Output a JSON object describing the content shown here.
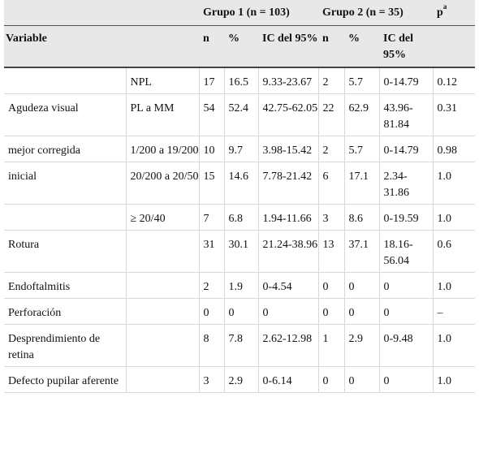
{
  "header": {
    "group1": "Grupo 1 (n = 103)",
    "group2": "Grupo 2 (n = 35)",
    "p_label": "p",
    "p_sup": "a",
    "variable": "Variable",
    "n": "n",
    "pct": "%",
    "ic": "IC del 95%"
  },
  "rows": [
    {
      "var": "",
      "sub": "NPL",
      "n1": "17",
      "p1": "16.5",
      "ic1": "9.33-23.67",
      "n2": "2",
      "p2": "5.7",
      "ic2": "0-14.79",
      "p": "0.12"
    },
    {
      "var": "Agudeza visual",
      "sub": "PL a MM",
      "n1": "54",
      "p1": "52.4",
      "ic1": "42.75-62.05",
      "n2": "22",
      "p2": "62.9",
      "ic2": "43.96-81.84",
      "p": "0.31"
    },
    {
      "var": "mejor corregida",
      "sub": "1/200 a 19/200",
      "n1": "10",
      "p1": "9.7",
      "ic1": "3.98-15.42",
      "n2": "2",
      "p2": "5.7",
      "ic2": "0-14.79",
      "p": "0.98"
    },
    {
      "var": "inicial",
      "sub": "20/200 a 20/50",
      "n1": "15",
      "p1": "14.6",
      "ic1": "7.78-21.42",
      "n2": "6",
      "p2": "17.1",
      "ic2": "2.34-31.86",
      "p": "1.0"
    },
    {
      "var": "",
      "sub": "≥ 20/40",
      "n1": "7",
      "p1": "6.8",
      "ic1": "1.94-11.66",
      "n2": "3",
      "p2": "8.6",
      "ic2": "0-19.59",
      "p": "1.0"
    },
    {
      "var": "Rotura",
      "sub": "",
      "n1": "31",
      "p1": "30.1",
      "ic1": "21.24-38.96",
      "n2": "13",
      "p2": "37.1",
      "ic2": "18.16-56.04",
      "p": "0.6"
    },
    {
      "var": "Endoftalmitis",
      "sub": "",
      "n1": "2",
      "p1": "1.9",
      "ic1": "0-4.54",
      "n2": "0",
      "p2": "0",
      "ic2": "0",
      "p": "1.0"
    },
    {
      "var": "Perforación",
      "sub": "",
      "n1": "0",
      "p1": "0",
      "ic1": "0",
      "n2": "0",
      "p2": "0",
      "ic2": "0",
      "p": "–"
    },
    {
      "var": "Desprendimiento de retina",
      "sub": "",
      "n1": "8",
      "p1": "7.8",
      "ic1": "2.62-12.98",
      "n2": "1",
      "p2": "2.9",
      "ic2": "0-9.48",
      "p": "1.0"
    },
    {
      "var": "Defecto pupilar aferente",
      "sub": "",
      "n1": "3",
      "p1": "2.9",
      "ic1": "0-6.14",
      "n2": "0",
      "p2": "0",
      "ic2": "0",
      "p": "1.0"
    }
  ]
}
